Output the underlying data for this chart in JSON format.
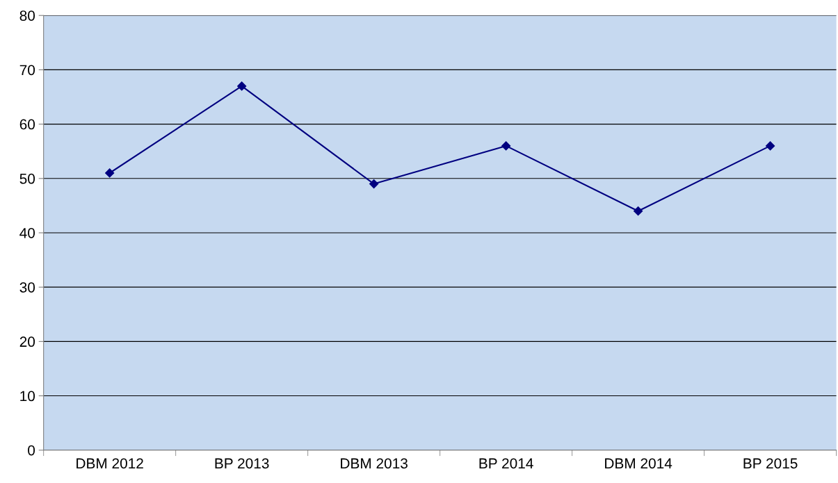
{
  "chart_data": {
    "type": "line",
    "categories": [
      "DBM 2012",
      "BP 2013",
      "DBM 2013",
      "BP 2014",
      "DBM 2014",
      "BP 2015"
    ],
    "series": [
      {
        "color": "#000080",
        "values": [
          51,
          67,
          49,
          56,
          44,
          56
        ]
      }
    ],
    "ylim": [
      0,
      80
    ],
    "yticks": [
      0,
      10,
      20,
      30,
      40,
      50,
      60,
      70,
      80
    ],
    "grid": "y",
    "marker": "diamond",
    "line_style": "solid",
    "legend": false
  }
}
